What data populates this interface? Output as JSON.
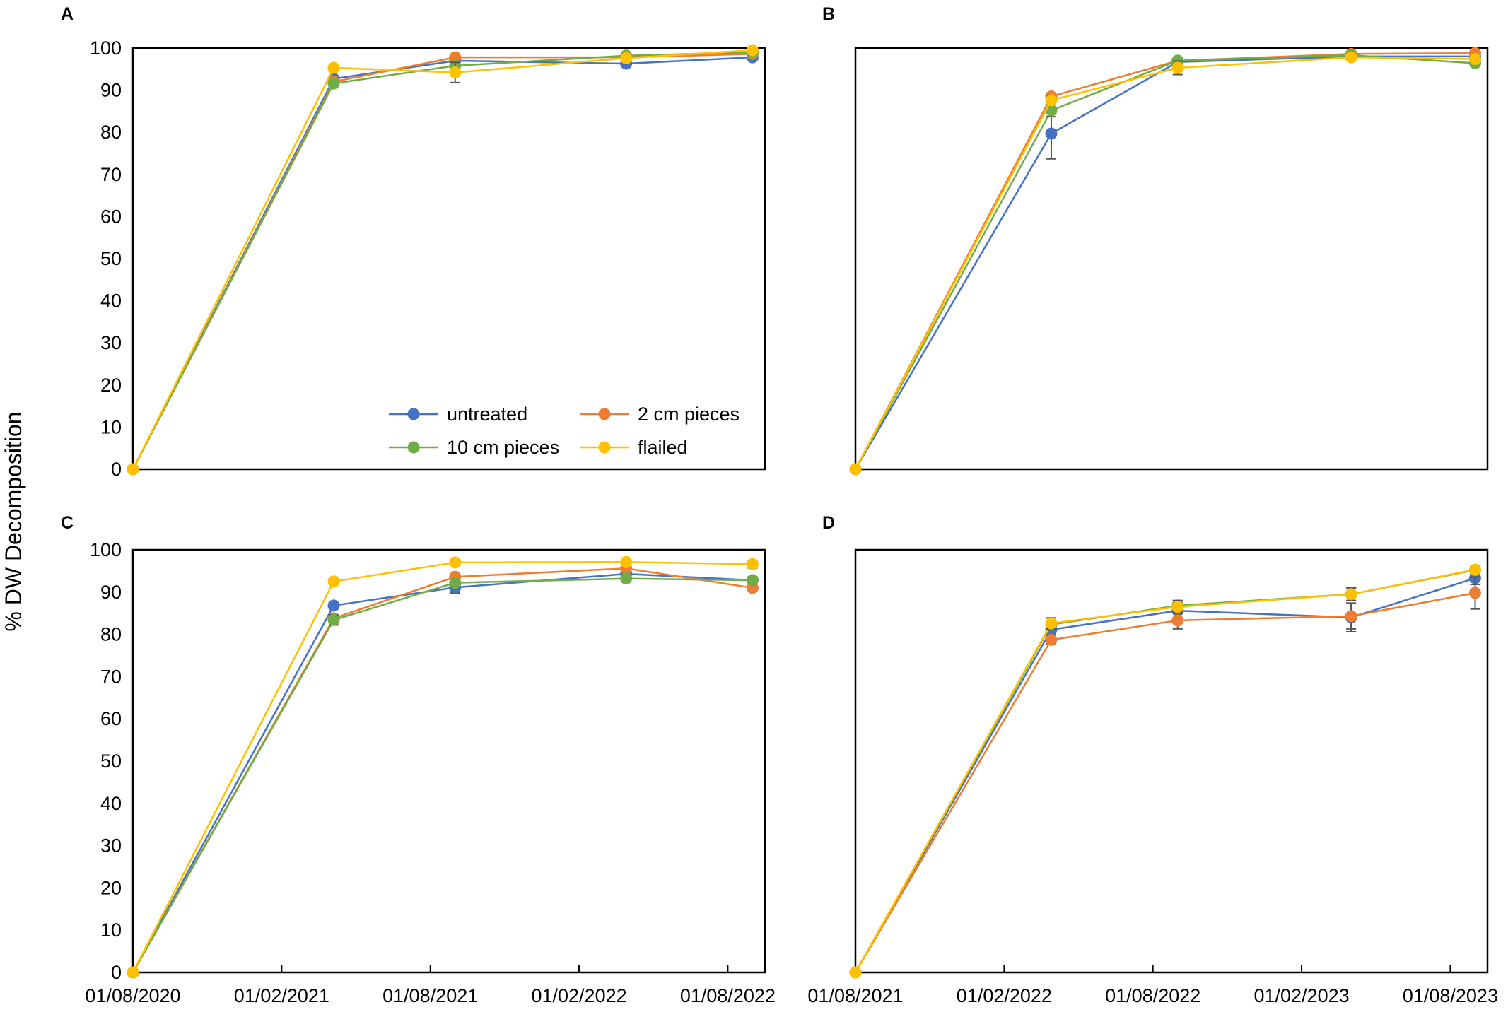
{
  "figure": {
    "ylabel": "% DW Decomposition"
  },
  "colors": {
    "untreated": "#4472C4",
    "2 cm pieces": "#ED7D31",
    "10 cm pieces": "#70AD47",
    "flailed": "#FFC000"
  },
  "legend": [
    {
      "name": "untreated",
      "color": "#4472C4"
    },
    {
      "name": "2 cm pieces",
      "color": "#ED7D31"
    },
    {
      "name": "10 cm pieces",
      "color": "#70AD47"
    },
    {
      "name": "flailed",
      "color": "#FFC000"
    }
  ],
  "chart_data": [
    {
      "panel": "A",
      "type": "line",
      "ylim": [
        0,
        100
      ],
      "yticks": [
        0,
        10,
        20,
        30,
        40,
        50,
        60,
        70,
        80,
        90,
        100
      ],
      "xlim_months": [
        0,
        25.5
      ],
      "xtick_labels": [
        "01/08/2020",
        "01/02/2021",
        "01/08/2021",
        "01/02/2022",
        "01/08/2022"
      ],
      "xtick_months": [
        0,
        6,
        12,
        18,
        24
      ],
      "show_y_ticks": true,
      "show_x_ticks": false,
      "legend_location": "bottom-right",
      "x_months": [
        0,
        8.1,
        13.0,
        19.9,
        25.0
      ],
      "series": [
        {
          "name": "untreated",
          "values": [
            0,
            92.7,
            97.0,
            96.3,
            97.8
          ],
          "errors": [
            0,
            0.6,
            0.8,
            0.6,
            0.5
          ]
        },
        {
          "name": "2 cm pieces",
          "values": [
            0,
            92.0,
            97.8,
            97.8,
            98.6
          ],
          "errors": [
            0,
            0.5,
            0.6,
            0.5,
            0.4
          ]
        },
        {
          "name": "10 cm pieces",
          "values": [
            0,
            91.6,
            95.8,
            98.2,
            99.0
          ],
          "errors": [
            0,
            0.7,
            0.9,
            0.5,
            0.4
          ]
        },
        {
          "name": "flailed",
          "values": [
            0,
            95.3,
            94.2,
            97.6,
            99.5
          ],
          "errors": [
            0,
            0.5,
            2.4,
            0.5,
            0.4
          ]
        }
      ]
    },
    {
      "panel": "B",
      "type": "line",
      "ylim": [
        0,
        100
      ],
      "yticks": [
        0,
        10,
        20,
        30,
        40,
        50,
        60,
        70,
        80,
        90,
        100
      ],
      "xlim_months": [
        0,
        25.5
      ],
      "xtick_labels": [
        "01/08/2021",
        "01/02/2022",
        "01/08/2022",
        "01/02/2023",
        "01/08/2023"
      ],
      "xtick_months": [
        0,
        6,
        12,
        18,
        24
      ],
      "show_y_ticks": false,
      "show_x_ticks": false,
      "x_months": [
        0,
        7.9,
        13.0,
        20.0,
        25.0
      ],
      "series": [
        {
          "name": "untreated",
          "values": [
            0,
            79.7,
            96.7,
            98.0,
            98.0
          ],
          "errors": [
            0,
            6.0,
            1.0,
            0.5,
            0.5
          ]
        },
        {
          "name": "2 cm pieces",
          "values": [
            0,
            88.5,
            97.0,
            98.6,
            98.8
          ],
          "errors": [
            0,
            0.8,
            0.6,
            0.5,
            0.4
          ]
        },
        {
          "name": "10 cm pieces",
          "values": [
            0,
            85.2,
            97.0,
            98.3,
            96.4
          ],
          "errors": [
            0,
            1.5,
            0.8,
            0.5,
            0.6
          ]
        },
        {
          "name": "flailed",
          "values": [
            0,
            87.6,
            95.3,
            97.8,
            97.4
          ],
          "errors": [
            0,
            1.0,
            1.6,
            0.6,
            0.5
          ]
        }
      ]
    },
    {
      "panel": "C",
      "type": "line",
      "ylim": [
        0,
        100
      ],
      "yticks": [
        0,
        10,
        20,
        30,
        40,
        50,
        60,
        70,
        80,
        90,
        100
      ],
      "xlim_months": [
        0,
        25.5
      ],
      "xtick_labels": [
        "01/08/2020",
        "01/02/2021",
        "01/08/2021",
        "01/02/2022",
        "01/08/2022"
      ],
      "xtick_months": [
        0,
        6,
        12,
        18,
        24
      ],
      "show_y_ticks": true,
      "show_x_ticks": true,
      "x_months": [
        0,
        8.1,
        13.0,
        19.9,
        25.0
      ],
      "series": [
        {
          "name": "untreated",
          "values": [
            0,
            86.8,
            91.1,
            94.3,
            92.8
          ],
          "errors": [
            0,
            0.6,
            1.3,
            0.8,
            0.6
          ]
        },
        {
          "name": "2 cm pieces",
          "values": [
            0,
            83.8,
            93.6,
            95.6,
            91.0
          ],
          "errors": [
            0,
            0.7,
            0.6,
            0.5,
            0.5
          ]
        },
        {
          "name": "10 cm pieces",
          "values": [
            0,
            83.4,
            92.2,
            93.2,
            92.8
          ],
          "errors": [
            0,
            1.2,
            0.6,
            0.8,
            0.8
          ]
        },
        {
          "name": "flailed",
          "values": [
            0,
            92.5,
            97.0,
            97.1,
            96.6
          ],
          "errors": [
            0,
            0.7,
            0.4,
            0.5,
            0.9
          ]
        }
      ]
    },
    {
      "panel": "D",
      "type": "line",
      "ylim": [
        0,
        100
      ],
      "yticks": [
        0,
        10,
        20,
        30,
        40,
        50,
        60,
        70,
        80,
        90,
        100
      ],
      "xlim_months": [
        0,
        25.5
      ],
      "xtick_labels": [
        "01/08/2021",
        "01/02/2022",
        "01/08/2022",
        "01/02/2023",
        "01/08/2023"
      ],
      "xtick_months": [
        0,
        6,
        12,
        18,
        24
      ],
      "show_y_ticks": false,
      "show_x_ticks": true,
      "x_months": [
        0,
        7.9,
        13.0,
        20.0,
        25.0
      ],
      "series": [
        {
          "name": "untreated",
          "values": [
            0,
            81.1,
            85.6,
            84.0,
            93.3
          ],
          "errors": [
            0,
            1.0,
            2.0,
            3.4,
            1.5
          ]
        },
        {
          "name": "2 cm pieces",
          "values": [
            0,
            78.7,
            83.3,
            84.3,
            89.8
          ],
          "errors": [
            0,
            1.0,
            2.0,
            3.0,
            3.8
          ]
        },
        {
          "name": "10 cm pieces",
          "values": [
            0,
            82.3,
            86.8,
            89.5,
            95.2
          ],
          "errors": [
            0,
            1.0,
            1.2,
            1.5,
            1.0
          ]
        },
        {
          "name": "flailed",
          "values": [
            0,
            82.6,
            86.5,
            89.5,
            95.3
          ],
          "errors": [
            0,
            1.3,
            1.5,
            1.5,
            1.0
          ]
        }
      ]
    }
  ]
}
